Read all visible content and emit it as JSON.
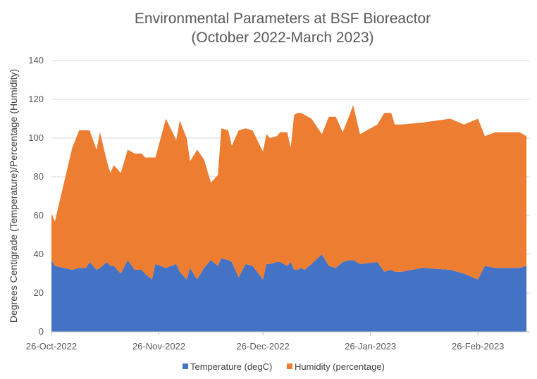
{
  "chart_data": {
    "type": "area",
    "stacked": true,
    "title_lines": [
      "Environmental Parameters at BSF Bioreactor",
      "(October 2022-March 2023)"
    ],
    "xlabel": "",
    "ylabel": "Degrees Centigrade (Temperature)/Percentage (Humidity)",
    "ylim": [
      0,
      140
    ],
    "yticks": [
      0,
      20,
      40,
      60,
      80,
      100,
      120,
      140
    ],
    "grid": true,
    "legend_position": "bottom",
    "x_start": "2022-10-26",
    "x_end": "2023-03-13",
    "xtick_days": [
      0,
      31,
      61,
      92,
      123
    ],
    "xtick_labels": [
      "26-Oct-2022",
      "26-Nov-2022",
      "26-Dec-2022",
      "26-Jan-2023",
      "26-Feb-2023"
    ],
    "x_days": [
      0,
      1,
      6,
      8,
      10,
      11,
      13,
      14,
      16,
      17,
      18,
      20,
      22,
      24,
      26,
      27,
      29,
      30,
      33,
      36,
      37,
      39,
      40,
      42,
      44,
      46,
      48,
      49,
      51,
      52,
      54,
      56,
      58,
      61,
      62,
      63,
      65,
      66,
      68,
      69,
      70,
      71,
      72,
      73,
      75,
      78,
      80,
      82,
      84,
      86,
      87,
      89,
      94,
      96,
      98,
      99,
      101,
      107,
      115,
      119,
      123,
      125,
      128,
      135,
      137
    ],
    "series": [
      {
        "name": "Temperature (degC)",
        "color": "#4472C4",
        "values": [
          37,
          34,
          32,
          33,
          33,
          36,
          32,
          33,
          36,
          34,
          34,
          30,
          37,
          32,
          32,
          30,
          27,
          35,
          33,
          35,
          31,
          27,
          33,
          27,
          33,
          37,
          34,
          38,
          37,
          36,
          28,
          35,
          34,
          27,
          35,
          35,
          36,
          36,
          34,
          36,
          32,
          32,
          33,
          32,
          35,
          40,
          34,
          33,
          36,
          37,
          37,
          35,
          36,
          31,
          32,
          31,
          31,
          33,
          32,
          30,
          27,
          34,
          33,
          33,
          34
        ]
      },
      {
        "name": "Humidity (percentage)",
        "color": "#ED7D31",
        "values": [
          24,
          23,
          63,
          71,
          71,
          68,
          62,
          70,
          52,
          48,
          52,
          52,
          57,
          60,
          60,
          60,
          63,
          55,
          77,
          64,
          78,
          73,
          55,
          67,
          56,
          40,
          47,
          67,
          67,
          60,
          76,
          70,
          70,
          66,
          67,
          65,
          65,
          67,
          69,
          59,
          80,
          81,
          80,
          80,
          75,
          62,
          77,
          78,
          67,
          75,
          80,
          67,
          71,
          82,
          81,
          76,
          76,
          75,
          78,
          77,
          83,
          67,
          70,
          70,
          67
        ]
      }
    ]
  }
}
